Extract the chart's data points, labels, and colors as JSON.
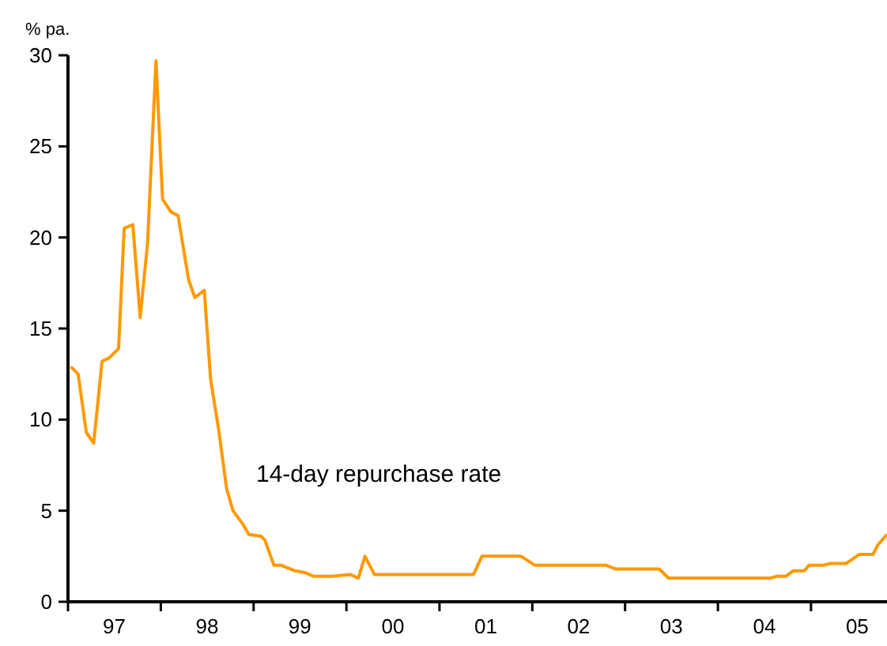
{
  "chart_data": {
    "type": "line",
    "ylabel": "% pa.",
    "x": [
      "1997-01-12",
      "1997-02-10",
      "1997-03-14",
      "1997-04-12",
      "1997-05-15",
      "1997-06-13",
      "1997-07-19",
      "1997-08-10",
      "1997-09-13",
      "1997-10-12",
      "1997-11-10",
      "1997-12-13",
      "1998-01-08",
      "1998-02-10",
      "1998-03-10",
      "1998-04-20",
      "1998-05-15",
      "1998-06-21",
      "1998-07-16",
      "1998-08-15",
      "1998-09-17",
      "1998-10-12",
      "1998-11-18",
      "1998-12-13",
      "1999-01-30",
      "1999-02-14",
      "1999-03-22",
      "1999-04-20",
      "1999-06-13",
      "1999-07-23",
      "1999-08-25",
      "1999-11-03",
      "2000-01-15",
      "2000-02-17",
      "2000-03-14",
      "2000-04-20",
      "2001-05-15",
      "2001-06-17",
      "2001-11-18",
      "2002-01-12",
      "2002-10-19",
      "2002-11-24",
      "2003-05-15",
      "2003-06-21",
      "2004-07-23",
      "2004-08-22",
      "2004-09-24",
      "2004-10-23",
      "2004-12-06",
      "2004-12-24",
      "2005-02-17",
      "2005-03-18",
      "2005-05-19",
      "2005-07-09",
      "2005-09-02",
      "2005-09-20",
      "2005-10-27"
    ],
    "series": [
      {
        "name": "14-day repurchase rate",
        "color": "#ff9900",
        "values": [
          12.9,
          12.5,
          9.3,
          8.7,
          13.2,
          13.4,
          13.9,
          20.5,
          20.7,
          15.6,
          19.7,
          29.7,
          22.1,
          21.4,
          21.2,
          17.7,
          16.7,
          17.1,
          12.2,
          9.6,
          6.2,
          5.0,
          4.3,
          3.7,
          3.6,
          3.4,
          2.0,
          2.0,
          1.7,
          1.6,
          1.4,
          1.4,
          1.5,
          1.3,
          2.5,
          1.5,
          1.5,
          2.5,
          2.5,
          2.0,
          2.0,
          1.8,
          1.8,
          1.3,
          1.3,
          1.4,
          1.4,
          1.7,
          1.7,
          2.0,
          2.0,
          2.1,
          2.1,
          2.6,
          2.6,
          3.1,
          3.7
        ]
      }
    ],
    "xlim": [
      "1997-01-01",
      "2005-10-27"
    ],
    "xticks": [
      {
        "value": "1997-01-01",
        "label": null
      },
      {
        "value": "1997-07-02",
        "label": "97"
      },
      {
        "value": "1998-01-01",
        "label": null
      },
      {
        "value": "1998-07-02",
        "label": "98"
      },
      {
        "value": "1999-01-01",
        "label": null
      },
      {
        "value": "1999-07-02",
        "label": "99"
      },
      {
        "value": "2000-01-01",
        "label": null
      },
      {
        "value": "2000-07-02",
        "label": "00"
      },
      {
        "value": "2001-01-01",
        "label": null
      },
      {
        "value": "2001-07-02",
        "label": "01"
      },
      {
        "value": "2002-01-01",
        "label": null
      },
      {
        "value": "2002-07-02",
        "label": "02"
      },
      {
        "value": "2003-01-01",
        "label": null
      },
      {
        "value": "2003-07-02",
        "label": "03"
      },
      {
        "value": "2004-01-01",
        "label": null
      },
      {
        "value": "2004-07-02",
        "label": "04"
      },
      {
        "value": "2005-01-01",
        "label": null
      },
      {
        "value": "2005-07-02",
        "label": "05"
      }
    ],
    "ylim": [
      0,
      30
    ],
    "yticks": [
      0,
      5,
      10,
      15,
      20,
      25,
      30
    ],
    "grid": false,
    "legend": false,
    "marker": "none",
    "line_style": "solid"
  }
}
